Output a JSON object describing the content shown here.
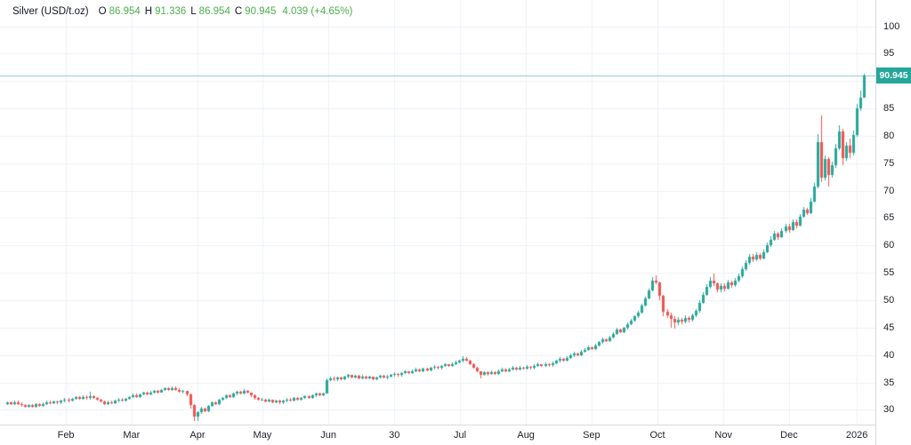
{
  "legend": {
    "symbol": "Silver (USD/t.oz)",
    "o_label": "O",
    "open": "86.954",
    "h_label": "H",
    "high": "91.336",
    "l_label": "L",
    "low": "86.954",
    "c_label": "C",
    "close": "90.945",
    "change": "4.039 (+4.65%)"
  },
  "chart_data": {
    "type": "candlestick",
    "title": "Silver (USD/t.oz)",
    "last_price": 90.945,
    "last_price_label": "90.945",
    "ohlc_last": {
      "open": 86.954,
      "high": 91.336,
      "low": 86.954,
      "close": 90.945,
      "change": 4.039,
      "change_pct": "+4.65%"
    },
    "y_ticks": [
      100,
      95,
      90,
      85,
      80,
      75,
      70,
      65,
      60,
      55,
      50,
      45,
      40,
      35,
      30
    ],
    "ylim": [
      27.3,
      104.8
    ],
    "x_ticks": [
      {
        "label": "Feb",
        "i": 16.4
      },
      {
        "label": "Mar",
        "i": 34.7
      },
      {
        "label": "Apr",
        "i": 53.1
      },
      {
        "label": "May",
        "i": 71.2
      },
      {
        "label": "Jun",
        "i": 89.6
      },
      {
        "label": "30",
        "i": 108.0
      },
      {
        "label": "Jul",
        "i": 126.3
      },
      {
        "label": "Aug",
        "i": 144.7
      },
      {
        "label": "Sep",
        "i": 163.0
      },
      {
        "label": "Oct",
        "i": 181.4
      },
      {
        "label": "Nov",
        "i": 199.8
      },
      {
        "label": "Dec",
        "i": 218.1
      },
      {
        "label": "2026",
        "i": 237.0
      }
    ],
    "grid": true,
    "legend_position": "top-left",
    "colors": {
      "up": "#26a69a",
      "down": "#ef5350",
      "grid": "#eef1f5",
      "axis_border": "#d6dade",
      "axis_text": "#1c2026",
      "legend_text": "#131722",
      "legend_value": "#4caf50",
      "badge_bg": "#26a69a",
      "price_line": "rgba(38,166,154,0.55)",
      "background": "#ffffff"
    },
    "candles": [
      [
        31.0,
        31.5,
        30.8,
        31.3
      ],
      [
        31.3,
        31.5,
        30.8,
        31.0
      ],
      [
        31.0,
        31.6,
        30.9,
        31.4
      ],
      [
        31.4,
        31.6,
        30.9,
        31.1
      ],
      [
        31.1,
        31.3,
        30.6,
        30.8
      ],
      [
        30.8,
        31.0,
        30.3,
        30.5
      ],
      [
        30.5,
        31.1,
        30.3,
        30.9
      ],
      [
        30.9,
        31.1,
        30.4,
        30.6
      ],
      [
        30.6,
        31.2,
        30.4,
        31.0
      ],
      [
        31.0,
        31.2,
        30.5,
        30.7
      ],
      [
        30.7,
        31.3,
        30.5,
        31.1
      ],
      [
        31.1,
        31.6,
        30.9,
        31.4
      ],
      [
        31.4,
        31.6,
        31.0,
        31.2
      ],
      [
        31.2,
        31.7,
        31.0,
        31.5
      ],
      [
        31.5,
        31.7,
        31.1,
        31.3
      ],
      [
        31.3,
        31.8,
        31.1,
        31.6
      ],
      [
        31.6,
        32.1,
        31.4,
        31.9
      ],
      [
        31.9,
        32.1,
        31.4,
        31.6
      ],
      [
        31.6,
        32.2,
        31.5,
        32.0
      ],
      [
        32.0,
        32.5,
        31.8,
        32.3
      ],
      [
        32.3,
        32.5,
        31.8,
        32.0
      ],
      [
        32.0,
        32.6,
        31.9,
        32.4
      ],
      [
        32.4,
        32.6,
        31.9,
        32.1
      ],
      [
        32.1,
        33.3,
        31.9,
        32.5
      ],
      [
        32.5,
        32.7,
        32.0,
        32.2
      ],
      [
        32.2,
        32.4,
        31.6,
        31.8
      ],
      [
        31.8,
        32.0,
        31.3,
        31.5
      ],
      [
        31.5,
        31.7,
        30.9,
        31.1
      ],
      [
        31.1,
        31.6,
        30.9,
        31.4
      ],
      [
        31.4,
        31.6,
        31.0,
        31.2
      ],
      [
        31.2,
        31.8,
        31.0,
        31.6
      ],
      [
        31.6,
        32.1,
        31.4,
        31.9
      ],
      [
        31.9,
        32.1,
        31.5,
        31.7
      ],
      [
        31.7,
        32.2,
        31.5,
        32.0
      ],
      [
        32.0,
        32.5,
        31.8,
        32.3
      ],
      [
        32.3,
        32.9,
        32.1,
        32.7
      ],
      [
        32.7,
        32.9,
        32.2,
        32.4
      ],
      [
        32.4,
        33.0,
        32.2,
        32.8
      ],
      [
        32.8,
        33.3,
        32.6,
        33.1
      ],
      [
        33.1,
        33.3,
        32.6,
        32.8
      ],
      [
        32.8,
        33.4,
        32.6,
        33.2
      ],
      [
        33.2,
        33.7,
        33.0,
        33.5
      ],
      [
        33.5,
        33.7,
        33.0,
        33.2
      ],
      [
        33.2,
        33.8,
        33.1,
        33.6
      ],
      [
        33.6,
        34.1,
        33.4,
        33.9
      ],
      [
        33.9,
        34.1,
        33.4,
        33.6
      ],
      [
        33.6,
        34.3,
        33.4,
        34.0
      ],
      [
        34.0,
        34.2,
        33.5,
        33.7
      ],
      [
        33.7,
        33.9,
        33.1,
        33.3
      ],
      [
        33.3,
        33.6,
        33.0,
        33.4
      ],
      [
        33.4,
        33.5,
        32.5,
        32.8
      ],
      [
        32.8,
        32.9,
        30.2,
        30.9
      ],
      [
        30.9,
        31.0,
        27.9,
        28.8
      ],
      [
        28.8,
        29.8,
        27.9,
        29.5
      ],
      [
        29.5,
        30.5,
        29.2,
        30.2
      ],
      [
        30.2,
        30.4,
        29.5,
        29.8
      ],
      [
        29.8,
        30.9,
        29.6,
        30.7
      ],
      [
        30.7,
        31.5,
        30.5,
        31.3
      ],
      [
        31.3,
        31.5,
        30.8,
        31.0
      ],
      [
        31.0,
        32.0,
        30.9,
        31.8
      ],
      [
        31.8,
        32.4,
        31.6,
        32.2
      ],
      [
        32.2,
        32.8,
        32.0,
        32.6
      ],
      [
        32.6,
        32.8,
        32.1,
        32.3
      ],
      [
        32.3,
        33.1,
        32.1,
        32.9
      ],
      [
        32.9,
        33.5,
        32.7,
        33.3
      ],
      [
        33.3,
        33.5,
        32.8,
        33.0
      ],
      [
        33.0,
        33.8,
        32.8,
        33.5
      ],
      [
        33.5,
        33.6,
        32.9,
        33.1
      ],
      [
        33.1,
        33.2,
        32.4,
        32.6
      ],
      [
        32.6,
        32.8,
        31.9,
        32.1
      ],
      [
        32.1,
        32.3,
        31.6,
        31.8
      ],
      [
        31.8,
        32.1,
        31.6,
        31.9
      ],
      [
        31.9,
        32.0,
        31.3,
        31.5
      ],
      [
        31.5,
        32.0,
        31.3,
        31.8
      ],
      [
        31.8,
        31.9,
        31.2,
        31.4
      ],
      [
        31.4,
        31.9,
        31.2,
        31.7
      ],
      [
        31.7,
        31.8,
        31.1,
        31.3
      ],
      [
        31.3,
        31.8,
        31.1,
        31.6
      ],
      [
        31.6,
        32.1,
        31.4,
        31.9
      ],
      [
        31.9,
        32.1,
        31.5,
        31.7
      ],
      [
        31.7,
        32.3,
        31.5,
        32.1
      ],
      [
        32.1,
        32.3,
        31.6,
        31.8
      ],
      [
        31.8,
        32.4,
        31.6,
        32.2
      ],
      [
        32.2,
        32.7,
        32.0,
        32.5
      ],
      [
        32.5,
        32.7,
        32.0,
        32.2
      ],
      [
        32.2,
        32.8,
        32.0,
        32.6
      ],
      [
        32.6,
        33.1,
        32.4,
        32.9
      ],
      [
        32.9,
        33.1,
        32.5,
        32.7
      ],
      [
        32.7,
        33.2,
        32.5,
        33.0
      ],
      [
        33.0,
        35.8,
        32.9,
        35.4
      ],
      [
        35.4,
        36.1,
        35.2,
        35.8
      ],
      [
        35.8,
        36.0,
        35.3,
        35.5
      ],
      [
        35.5,
        36.1,
        35.3,
        35.9
      ],
      [
        35.9,
        36.1,
        35.4,
        35.6
      ],
      [
        35.6,
        36.2,
        35.4,
        36.0
      ],
      [
        36.0,
        36.6,
        35.8,
        36.3
      ],
      [
        36.3,
        36.4,
        35.7,
        35.9
      ],
      [
        35.9,
        36.4,
        35.7,
        36.2
      ],
      [
        36.2,
        36.3,
        35.6,
        35.8
      ],
      [
        35.8,
        36.3,
        35.6,
        36.1
      ],
      [
        36.1,
        36.2,
        35.5,
        35.7
      ],
      [
        35.7,
        36.2,
        35.5,
        36.0
      ],
      [
        36.0,
        36.1,
        35.4,
        35.6
      ],
      [
        35.6,
        36.1,
        35.4,
        35.9
      ],
      [
        35.9,
        36.4,
        35.7,
        36.2
      ],
      [
        36.2,
        36.4,
        35.7,
        35.9
      ],
      [
        35.9,
        36.3,
        35.6,
        36.1
      ],
      [
        36.1,
        36.6,
        35.9,
        36.4
      ],
      [
        36.4,
        36.8,
        36.1,
        36.6
      ],
      [
        36.6,
        36.7,
        36.1,
        36.3
      ],
      [
        36.3,
        36.9,
        36.1,
        36.7
      ],
      [
        36.7,
        37.2,
        36.5,
        37.0
      ],
      [
        37.0,
        37.1,
        36.5,
        36.7
      ],
      [
        36.7,
        37.3,
        36.5,
        37.1
      ],
      [
        37.1,
        37.6,
        36.9,
        37.4
      ],
      [
        37.4,
        37.5,
        36.9,
        37.1
      ],
      [
        37.1,
        37.7,
        36.9,
        37.5
      ],
      [
        37.5,
        37.6,
        37.0,
        37.2
      ],
      [
        37.2,
        37.8,
        37.0,
        37.6
      ],
      [
        37.6,
        38.1,
        37.4,
        37.9
      ],
      [
        37.9,
        38.0,
        37.4,
        37.6
      ],
      [
        37.6,
        38.2,
        37.4,
        38.0
      ],
      [
        38.0,
        38.5,
        37.8,
        38.3
      ],
      [
        38.3,
        38.4,
        37.8,
        38.0
      ],
      [
        38.0,
        38.6,
        37.8,
        38.4
      ],
      [
        38.4,
        38.9,
        38.2,
        38.7
      ],
      [
        38.7,
        39.1,
        38.5,
        38.9
      ],
      [
        38.9,
        39.8,
        38.7,
        39.3
      ],
      [
        39.3,
        39.6,
        38.8,
        39.0
      ],
      [
        39.0,
        39.1,
        38.2,
        38.4
      ],
      [
        38.4,
        38.5,
        37.5,
        37.7
      ],
      [
        37.7,
        37.8,
        36.8,
        37.0
      ],
      [
        37.0,
        37.1,
        35.7,
        36.4
      ],
      [
        36.4,
        37.1,
        36.2,
        36.8
      ],
      [
        36.8,
        37.0,
        36.2,
        36.5
      ],
      [
        36.5,
        37.2,
        36.3,
        36.9
      ],
      [
        36.9,
        37.1,
        36.3,
        36.6
      ],
      [
        36.6,
        37.3,
        36.4,
        37.0
      ],
      [
        37.0,
        37.6,
        36.8,
        37.3
      ],
      [
        37.3,
        37.5,
        36.8,
        37.0
      ],
      [
        37.0,
        37.7,
        36.8,
        37.4
      ],
      [
        37.4,
        38.0,
        37.2,
        37.7
      ],
      [
        37.7,
        37.9,
        37.2,
        37.4
      ],
      [
        37.4,
        38.0,
        37.2,
        37.7
      ],
      [
        37.7,
        37.9,
        37.3,
        37.5
      ],
      [
        37.5,
        38.2,
        37.3,
        37.9
      ],
      [
        37.9,
        38.0,
        37.4,
        37.6
      ],
      [
        37.6,
        38.3,
        37.4,
        38.0
      ],
      [
        38.0,
        38.6,
        37.8,
        38.3
      ],
      [
        38.3,
        38.4,
        37.8,
        38.0
      ],
      [
        38.0,
        38.7,
        37.8,
        38.4
      ],
      [
        38.4,
        38.5,
        37.9,
        38.1
      ],
      [
        38.1,
        38.8,
        37.9,
        38.5
      ],
      [
        38.5,
        39.2,
        38.3,
        38.9
      ],
      [
        38.9,
        39.6,
        38.7,
        39.3
      ],
      [
        39.3,
        39.4,
        38.8,
        39.0
      ],
      [
        39.0,
        39.8,
        38.8,
        39.5
      ],
      [
        39.5,
        40.2,
        39.3,
        39.9
      ],
      [
        39.9,
        40.6,
        39.7,
        40.3
      ],
      [
        40.3,
        40.5,
        39.8,
        40.0
      ],
      [
        40.0,
        40.9,
        39.8,
        40.6
      ],
      [
        40.6,
        41.3,
        40.4,
        41.0
      ],
      [
        41.0,
        41.7,
        40.8,
        41.4
      ],
      [
        41.4,
        41.6,
        40.9,
        41.1
      ],
      [
        41.1,
        42.0,
        40.9,
        41.7
      ],
      [
        41.7,
        42.6,
        41.5,
        42.3
      ],
      [
        42.3,
        43.2,
        42.1,
        42.9
      ],
      [
        42.9,
        43.1,
        42.3,
        42.5
      ],
      [
        42.5,
        43.5,
        42.3,
        43.2
      ],
      [
        43.2,
        44.2,
        43.0,
        43.9
      ],
      [
        43.9,
        44.9,
        43.7,
        44.6
      ],
      [
        44.6,
        44.8,
        44.0,
        44.2
      ],
      [
        44.2,
        45.2,
        44.0,
        44.9
      ],
      [
        44.9,
        45.9,
        44.7,
        45.6
      ],
      [
        45.6,
        46.6,
        45.4,
        46.3
      ],
      [
        46.3,
        47.3,
        46.1,
        47.0
      ],
      [
        47.0,
        48.0,
        46.8,
        47.7
      ],
      [
        47.7,
        49.3,
        47.5,
        49.0
      ],
      [
        49.0,
        50.7,
        48.8,
        50.4
      ],
      [
        50.4,
        52.1,
        50.2,
        51.8
      ],
      [
        51.8,
        54.2,
        51.6,
        53.6
      ],
      [
        53.6,
        54.6,
        52.9,
        53.2
      ],
      [
        53.2,
        53.4,
        50.0,
        50.8
      ],
      [
        50.8,
        51.0,
        47.1,
        47.9
      ],
      [
        47.9,
        48.4,
        46.8,
        47.3
      ],
      [
        47.3,
        47.7,
        44.9,
        46.6
      ],
      [
        46.6,
        47.0,
        44.8,
        45.9
      ],
      [
        45.9,
        46.9,
        45.5,
        46.5
      ],
      [
        46.5,
        46.8,
        45.7,
        46.1
      ],
      [
        46.1,
        47.2,
        45.8,
        46.8
      ],
      [
        46.8,
        47.1,
        46.0,
        46.4
      ],
      [
        46.4,
        47.6,
        46.1,
        47.2
      ],
      [
        47.2,
        48.4,
        46.9,
        48.0
      ],
      [
        48.0,
        50.0,
        47.8,
        49.5
      ],
      [
        49.5,
        51.5,
        49.3,
        51.0
      ],
      [
        51.0,
        52.9,
        50.8,
        52.4
      ],
      [
        52.4,
        54.2,
        52.1,
        53.6
      ],
      [
        53.6,
        54.9,
        52.6,
        53.0
      ],
      [
        53.0,
        53.3,
        51.4,
        51.9
      ],
      [
        51.9,
        53.1,
        51.5,
        52.6
      ],
      [
        52.6,
        53.0,
        51.7,
        52.1
      ],
      [
        52.1,
        53.7,
        51.9,
        53.2
      ],
      [
        53.2,
        53.6,
        52.3,
        52.7
      ],
      [
        52.7,
        54.0,
        52.4,
        53.5
      ],
      [
        53.5,
        54.8,
        53.2,
        54.3
      ],
      [
        54.3,
        56.1,
        54.1,
        55.6
      ],
      [
        55.6,
        57.3,
        55.4,
        56.8
      ],
      [
        56.8,
        58.5,
        56.5,
        58.0
      ],
      [
        58.0,
        58.4,
        57.0,
        57.4
      ],
      [
        57.4,
        58.8,
        57.1,
        58.3
      ],
      [
        58.3,
        58.6,
        57.3,
        57.7
      ],
      [
        57.7,
        59.3,
        57.5,
        58.8
      ],
      [
        58.8,
        60.5,
        58.6,
        60.0
      ],
      [
        60.0,
        61.6,
        59.8,
        61.1
      ],
      [
        61.1,
        62.7,
        60.9,
        62.2
      ],
      [
        62.2,
        62.5,
        61.1,
        61.5
      ],
      [
        61.5,
        63.1,
        61.3,
        62.6
      ],
      [
        62.6,
        64.0,
        62.3,
        63.5
      ],
      [
        63.5,
        63.9,
        62.4,
        62.8
      ],
      [
        62.8,
        64.8,
        62.6,
        64.3
      ],
      [
        64.3,
        64.7,
        63.2,
        63.6
      ],
      [
        63.6,
        65.7,
        63.4,
        65.2
      ],
      [
        65.2,
        67.0,
        65.0,
        66.5
      ],
      [
        66.5,
        66.9,
        65.5,
        65.9
      ],
      [
        65.9,
        68.6,
        65.7,
        68.0
      ],
      [
        68.0,
        71.4,
        67.8,
        70.8
      ],
      [
        70.8,
        80.3,
        70.4,
        78.8
      ],
      [
        78.8,
        83.8,
        71.6,
        72.4
      ],
      [
        72.4,
        76.4,
        71.9,
        75.7
      ],
      [
        75.7,
        76.1,
        70.8,
        72.9
      ],
      [
        72.9,
        75.3,
        72.3,
        74.6
      ],
      [
        74.6,
        78.5,
        74.2,
        77.8
      ],
      [
        77.8,
        82.0,
        77.4,
        80.8
      ],
      [
        80.8,
        81.3,
        74.6,
        75.9
      ],
      [
        75.9,
        78.9,
        75.4,
        78.2
      ],
      [
        78.2,
        79.5,
        76.0,
        76.9
      ],
      [
        76.9,
        80.9,
        76.5,
        80.2
      ],
      [
        80.2,
        85.9,
        79.9,
        85.1
      ],
      [
        85.1,
        88.2,
        84.6,
        87.0
      ],
      [
        86.954,
        91.336,
        86.954,
        90.945
      ]
    ]
  }
}
